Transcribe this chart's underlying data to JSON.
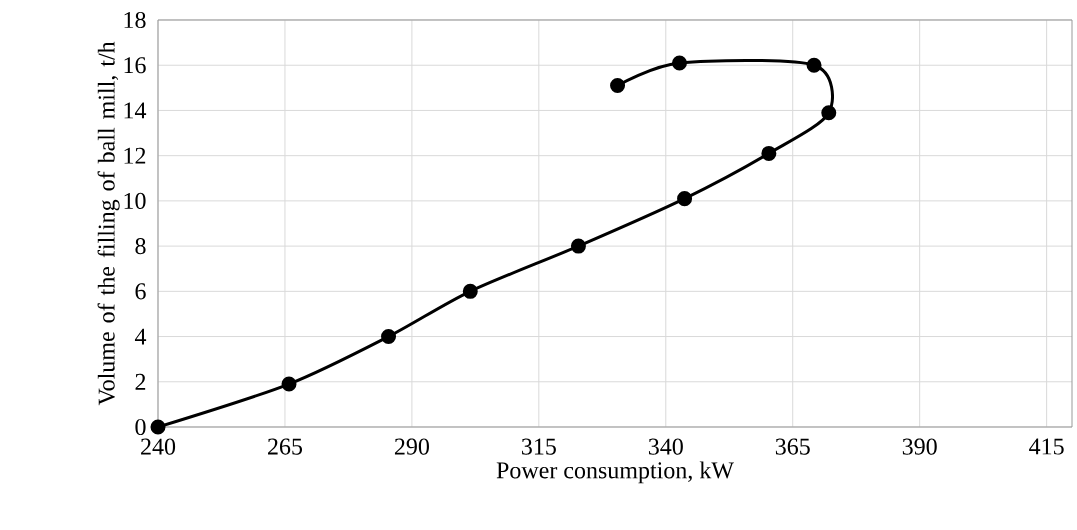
{
  "chart_data": {
    "type": "line",
    "xlabel": "Power consumption, kW",
    "ylabel": "Volume of the filling of ball mill, t/h",
    "x": [
      240,
      265.8,
      285.4,
      301.5,
      322.8,
      343.7,
      360.3,
      372.1,
      369.2,
      342.7,
      330.5
    ],
    "values": [
      0,
      1.9,
      4.0,
      6.0,
      8.0,
      10.1,
      12.1,
      13.9,
      16.0,
      16.1,
      15.1
    ],
    "color": "#000000",
    "marker": "circle",
    "line_style": "solid",
    "grid": true,
    "xlim": [
      240,
      420
    ],
    "xticks": [
      240,
      265,
      290,
      315,
      340,
      365,
      390,
      415
    ],
    "ylim": [
      0,
      18
    ],
    "yticks": [
      0,
      2,
      4,
      6,
      8,
      10,
      12,
      14,
      16,
      18
    ]
  }
}
